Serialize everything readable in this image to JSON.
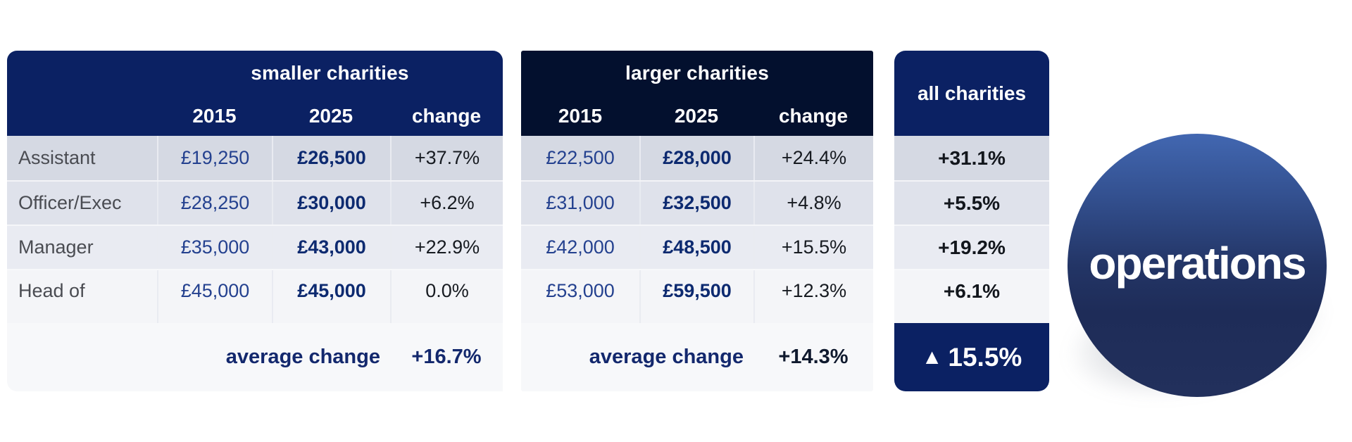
{
  "chart_data": {
    "type": "table",
    "row_labels": [
      "Assistant",
      "Officer/Exec",
      "Manager",
      "Head of"
    ],
    "groups": [
      {
        "title": "smaller charities",
        "columns": [
          "2015",
          "2025",
          "change"
        ],
        "rows": [
          [
            "£19,250",
            "£26,500",
            "+37.7%"
          ],
          [
            "£28,250",
            "£30,000",
            "+6.2%"
          ],
          [
            "£35,000",
            "£43,000",
            "+22.9%"
          ],
          [
            "£45,000",
            "£45,000",
            "0.0%"
          ]
        ],
        "footer_label": "average change",
        "footer_value": "+16.7%"
      },
      {
        "title": "larger charities",
        "columns": [
          "2015",
          "2025",
          "change"
        ],
        "rows": [
          [
            "£22,500",
            "£28,000",
            "+24.4%"
          ],
          [
            "£31,000",
            "£32,500",
            "+4.8%"
          ],
          [
            "£42,000",
            "£48,500",
            "+15.5%"
          ],
          [
            "£53,000",
            "£59,500",
            "+12.3%"
          ]
        ],
        "footer_label": "average change",
        "footer_value": "+14.3%"
      }
    ],
    "all_charities": {
      "title": "all charities",
      "values": [
        "+31.1%",
        "+5.5%",
        "+19.2%",
        "+6.1%"
      ],
      "overall_value": "15.5%"
    },
    "badge_label": "operations"
  },
  "ui": {
    "icons": {
      "up_triangle": "▲"
    },
    "colors": {
      "header_navy": "#0b2163",
      "header_dark_navy": "#03102e",
      "footer_navy": "#0b2163",
      "value_blue": "#24418f",
      "value_bold_navy": "#0d2a70",
      "change_dark": "#171b21",
      "row_label_gray": "#4a4c52",
      "average_navy": "#13286d",
      "row_bg_1": "#d5d9e3",
      "row_bg_2": "#dfe2eb",
      "row_bg_3": "#e9ebf2",
      "row_bg_4": "#f4f5f8",
      "footer_band_bg": "#f7f8fa",
      "badge_top_blue": "#4267b1",
      "badge_navy": "#1e2c58"
    }
  }
}
